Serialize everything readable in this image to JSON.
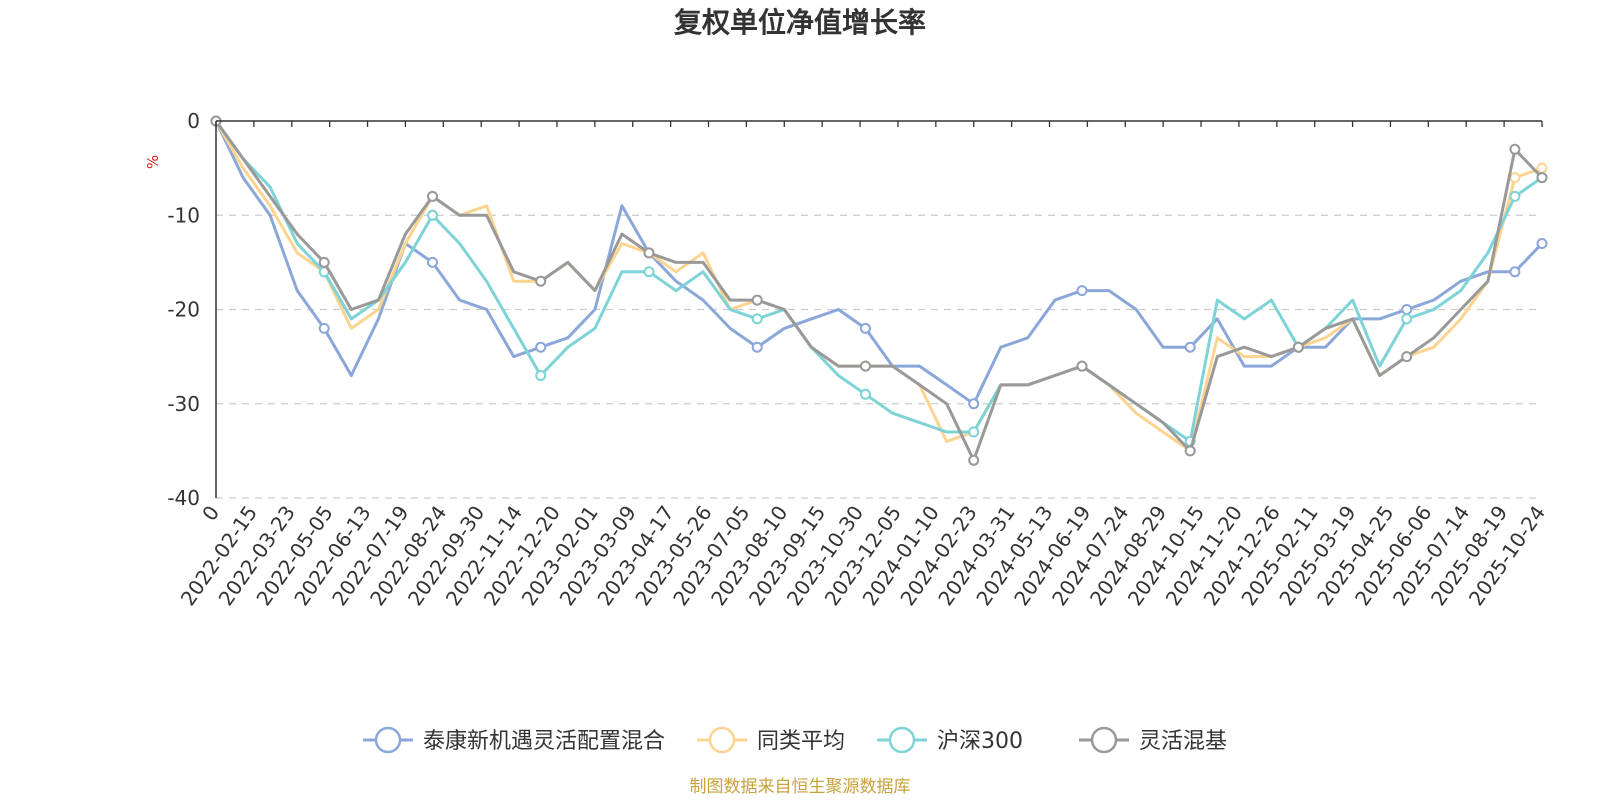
{
  "chart_data": {
    "type": "line",
    "title": "复权单位净值增长率",
    "ylabel": "%",
    "xlabel": "",
    "ylim": [
      -40,
      0
    ],
    "yticks": [
      0,
      -10,
      -20,
      -30,
      -40
    ],
    "grid": true,
    "legend_position": "bottom",
    "x_tick_labels": [
      "0",
      "2022-02-15",
      "2022-03-23",
      "2022-05-05",
      "2022-06-13",
      "2022-07-19",
      "2022-08-24",
      "2022-09-30",
      "2022-11-14",
      "2022-12-20",
      "2023-02-01",
      "2023-03-09",
      "2023-04-17",
      "2023-05-26",
      "2023-07-05",
      "2023-08-10",
      "2023-09-15",
      "2023-10-30",
      "2023-12-05",
      "2024-01-10",
      "2024-02-23",
      "2024-03-31",
      "2024-05-13",
      "2024-06-19",
      "2024-07-24",
      "2024-08-29",
      "2024-10-15",
      "2024-11-20",
      "2024-12-26",
      "2025-02-11",
      "2025-03-19",
      "2025-04-25",
      "2025-06-06",
      "2025-07-14",
      "2025-08-19",
      "2025-10-24"
    ],
    "series": [
      {
        "name": "泰康新机遇灵活配置混合",
        "color": "#8ba7d9",
        "values": [
          0,
          -6,
          -10,
          -18,
          -22,
          -27,
          -21,
          -13,
          -15,
          -19,
          -20,
          -25,
          -24,
          -23,
          -20,
          -9,
          -14,
          -17,
          -19,
          -22,
          -24,
          -22,
          -21,
          -20,
          -22,
          -26,
          -26,
          -28,
          -30,
          -24,
          -23,
          -19,
          -18,
          -18,
          -20,
          -24,
          -24,
          -21,
          -26,
          -26,
          -24,
          -24,
          -21,
          -21,
          -20,
          -19,
          -17,
          -16,
          -16,
          -13
        ]
      },
      {
        "name": "同类平均",
        "color": "#fcd48f",
        "values": [
          0,
          -5,
          -9,
          -14,
          -16,
          -22,
          -20,
          -13,
          -8,
          -10,
          -9,
          -17,
          -17,
          -15,
          -18,
          -13,
          -14,
          -16,
          -14,
          -20,
          -19,
          -20,
          -24,
          -26,
          -26,
          -26,
          -28,
          -34,
          -33,
          -28,
          -28,
          -27,
          -26,
          -28,
          -31,
          -33,
          -35,
          -23,
          -25,
          -25,
          -24,
          -23,
          -21,
          -27,
          -25,
          -24,
          -21,
          -17,
          -6,
          -5
        ]
      },
      {
        "name": "沪深300",
        "color": "#7dd3d6",
        "values": [
          0,
          -4,
          -7,
          -13,
          -16,
          -21,
          -19,
          -15,
          -10,
          -13,
          -17,
          -22,
          -27,
          -24,
          -22,
          -16,
          -16,
          -18,
          -16,
          -20,
          -21,
          -20,
          -24,
          -27,
          -29,
          -31,
          -32,
          -33,
          -33,
          -28,
          -28,
          -27,
          -26,
          -28,
          -30,
          -32,
          -34,
          -19,
          -21,
          -19,
          -24,
          -22,
          -19,
          -26,
          -21,
          -20,
          -18,
          -14,
          -8,
          -6
        ]
      },
      {
        "name": "灵活混基",
        "color": "#999999",
        "values": [
          0,
          -4,
          -8,
          -12,
          -15,
          -20,
          -19,
          -12,
          -8,
          -10,
          -10,
          -16,
          -17,
          -15,
          -18,
          -12,
          -14,
          -15,
          -15,
          -19,
          -19,
          -20,
          -24,
          -26,
          -26,
          -26,
          -28,
          -30,
          -36,
          -28,
          -28,
          -27,
          -26,
          -28,
          -30,
          -32,
          -35,
          -25,
          -24,
          -25,
          -24,
          -22,
          -21,
          -27,
          -25,
          -23,
          -20,
          -17,
          -3,
          -6
        ]
      }
    ]
  },
  "footer": {
    "source_text": "制图数据来自恒生聚源数据库"
  }
}
